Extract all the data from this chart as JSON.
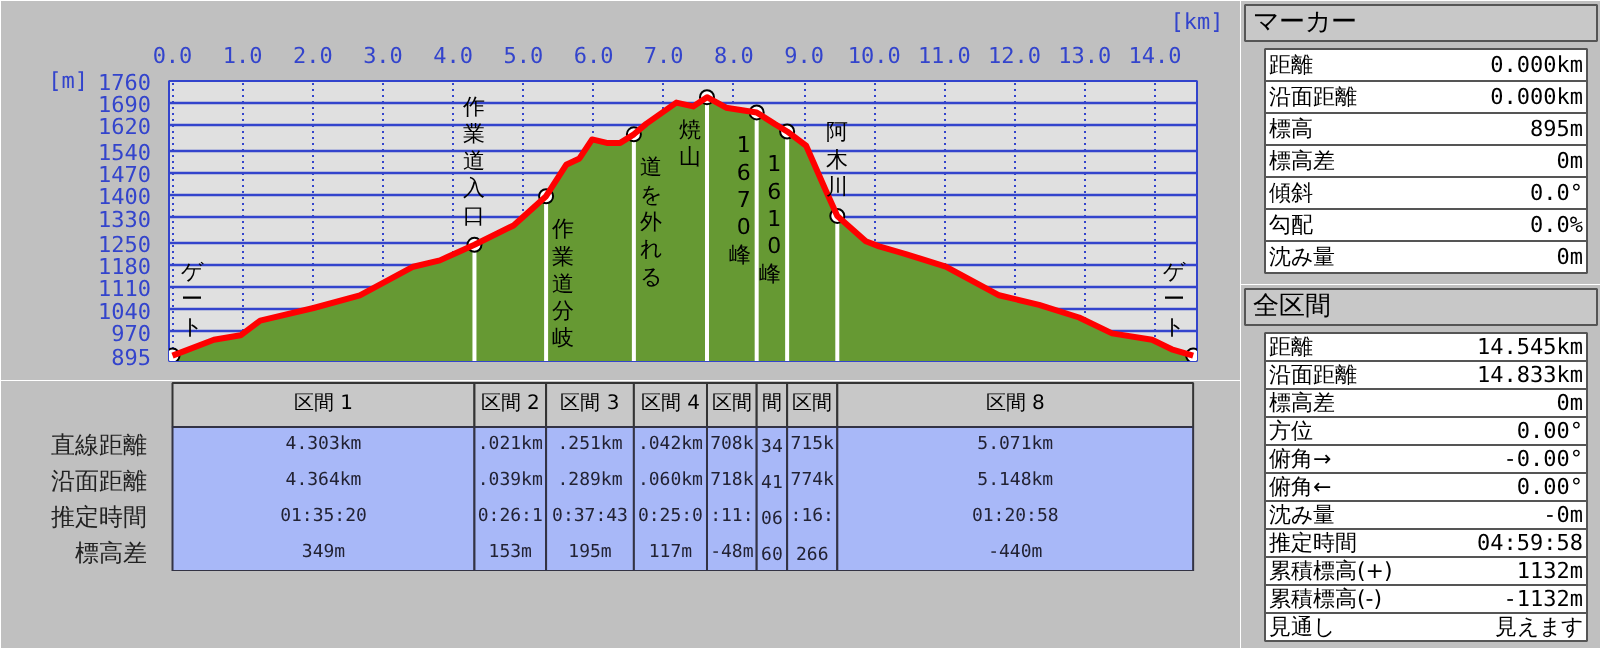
{
  "chart_data": [
    {
      "type": "area",
      "xlabel": "[km]",
      "ylabel": "[m]",
      "grid": true,
      "x": [
        0,
        0.59,
        0.97,
        1.25,
        2.01,
        2.67,
        3.43,
        3.81,
        4.303,
        4.86,
        5.324,
        5.61,
        5.8,
        5.98,
        6.19,
        6.38,
        6.575,
        6.75,
        7.18,
        7.42,
        7.617,
        7.89,
        8.325,
        8.58,
        8.759,
        9.03,
        9.31,
        9.474,
        9.88,
        10.07,
        10.45,
        11.02,
        11.78,
        12.35,
        12.92,
        13.39,
        13.96,
        14.24,
        14.545
      ],
      "series": [
        {
          "color": "#669933",
          "values": [
            895,
            945,
            959,
            1005,
            1045,
            1085,
            1175,
            1195,
            1244,
            1305,
            1397,
            1496,
            1516,
            1576,
            1565,
            1565,
            1592,
            1625,
            1692,
            1680,
            1709,
            1676,
            1661,
            1625,
            1601,
            1556,
            1415,
            1335,
            1255,
            1239,
            1215,
            1175,
            1085,
            1055,
            1015,
            965,
            945,
            915,
            895
          ]
        },
        {
          "type": "line",
          "color": "#ff0000",
          "values": [
            895,
            945,
            959,
            1005,
            1045,
            1085,
            1175,
            1195,
            1244,
            1305,
            1397,
            1496,
            1516,
            1576,
            1565,
            1565,
            1592,
            1625,
            1692,
            1680,
            1709,
            1676,
            1661,
            1625,
            1601,
            1556,
            1415,
            1335,
            1255,
            1239,
            1215,
            1175,
            1085,
            1055,
            1015,
            965,
            945,
            915,
            895
          ]
        }
      ],
      "xlim": [
        -0.05,
        14.6
      ],
      "xticks": [
        {
          "value": 0,
          "label": "0.0"
        },
        {
          "value": 1,
          "label": "1.0"
        },
        {
          "value": 2,
          "label": "2.0"
        },
        {
          "value": 3,
          "label": "3.0"
        },
        {
          "value": 4,
          "label": "4.0"
        },
        {
          "value": 5,
          "label": "5.0"
        },
        {
          "value": 6,
          "label": "6.0"
        },
        {
          "value": 7,
          "label": "7.0"
        },
        {
          "value": 8,
          "label": "8.0"
        },
        {
          "value": 9,
          "label": "9.0"
        },
        {
          "value": 10,
          "label": "10.0"
        },
        {
          "value": 11,
          "label": "11.0"
        },
        {
          "value": 12,
          "label": "12.0"
        },
        {
          "value": 13,
          "label": "13.0"
        },
        {
          "value": 14,
          "label": "14.0"
        }
      ],
      "ylim": [
        878,
        1760
      ],
      "yticks": [
        895,
        970,
        1040,
        1110,
        1180,
        1250,
        1330,
        1400,
        1470,
        1540,
        1620,
        1690,
        1760
      ],
      "annotations": [
        {
          "text": "ゲート",
          "x": 0,
          "y": 895
        },
        {
          "text": "作業道入口",
          "x": 4.303,
          "y": 1244
        },
        {
          "text": "作業道分岐",
          "x": 5.324,
          "y": 1397
        },
        {
          "text": "道を外れる",
          "x": 6.575,
          "y": 1592
        },
        {
          "text": "焼山",
          "x": 7.617,
          "y": 1709
        },
        {
          "text": "1670峰",
          "x": 8.325,
          "y": 1661
        },
        {
          "text": "1610峰",
          "x": 8.759,
          "y": 1601
        },
        {
          "text": "阿木川",
          "x": 9.474,
          "y": 1335
        },
        {
          "text": "ゲート",
          "x": 14.545,
          "y": 895
        }
      ]
    },
    {
      "type": "other",
      "categories": [
        "区間 1",
        "区間 2",
        "区間 3",
        "区間 4",
        "区間",
        "間",
        "区間",
        "区間 8"
      ],
      "y_categories": [
        "直線距離",
        "沿面距離",
        "推定時間",
        "標高差"
      ],
      "cell_labels": [
        [
          "4.303km",
          ".021km",
          ".251km",
          ".042km",
          "708k",
          "34",
          "715k",
          "5.071km"
        ],
        [
          "4.364km",
          ".039km",
          ".289km",
          ".060km",
          "718k",
          "41",
          "774k",
          "5.148km"
        ],
        [
          "01:35:20",
          "0:26:1",
          "0:37:43",
          "0:25:0",
          ":11:",
          "06",
          ":16:",
          "01:20:58"
        ],
        [
          "349m",
          "153m",
          "195m",
          "117m",
          "-48m",
          "60",
          "266",
          "-440m"
        ]
      ]
    },
    {
      "type": "other",
      "title": "マーカー",
      "y_categories": [
        "距離",
        "沿面距離",
        "標高",
        "標高差",
        "傾斜",
        "勾配",
        "沈み量"
      ],
      "cell_labels": [
        [
          "0.000km"
        ],
        [
          "0.000km"
        ],
        [
          "895m"
        ],
        [
          "0m"
        ],
        [
          "0.0°"
        ],
        [
          "0.0%"
        ],
        [
          "0m"
        ]
      ]
    },
    {
      "type": "other",
      "title": "全区間",
      "y_categories": [
        "距離",
        "沿面距離",
        "標高差",
        "方位",
        "俯角→",
        "俯角←",
        "沈み量",
        "推定時間",
        "累積標高(+)",
        "累積標高(-)",
        "見通し"
      ],
      "cell_labels": [
        [
          "14.545km"
        ],
        [
          "14.833km"
        ],
        [
          "0m"
        ],
        [
          "0.00°"
        ],
        [
          "-0.00°"
        ],
        [
          "0.00°"
        ],
        [
          "-0m"
        ],
        [
          "04:59:58"
        ],
        [
          "1132m"
        ],
        [
          "-1132m"
        ],
        [
          "見えます"
        ]
      ]
    }
  ]
}
